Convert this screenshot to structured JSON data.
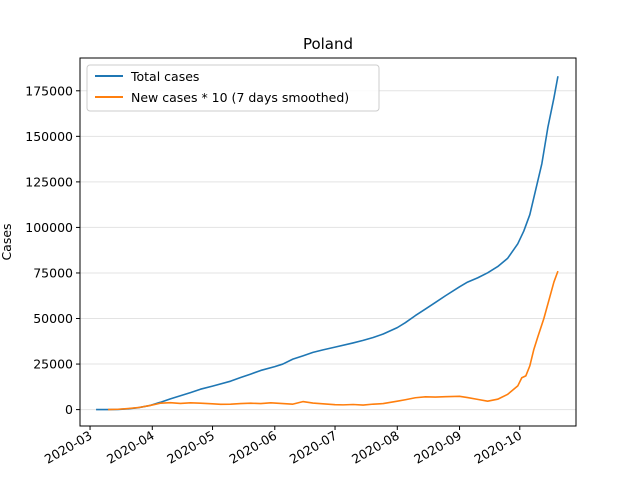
{
  "chart_data": {
    "type": "line",
    "title": "Poland",
    "xlabel": "",
    "ylabel": "Cases",
    "x_ticks": [
      "2020-03",
      "2020-04",
      "2020-05",
      "2020-06",
      "2020-07",
      "2020-08",
      "2020-09",
      "2020-10"
    ],
    "y_ticks": [
      "0",
      "25000",
      "50000",
      "75000",
      "100000",
      "125000",
      "150000",
      "175000"
    ],
    "xlim": [
      "2020-02-25",
      "2020-10-29"
    ],
    "ylim": [
      -9000,
      193000
    ],
    "grid": "y",
    "legend_position": "top-left",
    "series": [
      {
        "name": "Total cases",
        "color": "#1f77b4",
        "points": [
          [
            "2020-03-04",
            0
          ],
          [
            "2020-03-10",
            20
          ],
          [
            "2020-03-15",
            120
          ],
          [
            "2020-03-20",
            450
          ],
          [
            "2020-03-25",
            1050
          ],
          [
            "2020-03-31",
            2300
          ],
          [
            "2020-04-05",
            4000
          ],
          [
            "2020-04-10",
            5900
          ],
          [
            "2020-04-15",
            7600
          ],
          [
            "2020-04-20",
            9300
          ],
          [
            "2020-04-25",
            11200
          ],
          [
            "2020-05-01",
            12900
          ],
          [
            "2020-05-10",
            15600
          ],
          [
            "2020-05-15",
            17600
          ],
          [
            "2020-05-20",
            19500
          ],
          [
            "2020-05-25",
            21500
          ],
          [
            "2020-06-01",
            23600
          ],
          [
            "2020-06-05",
            25000
          ],
          [
            "2020-06-10",
            27700
          ],
          [
            "2020-06-15",
            29500
          ],
          [
            "2020-06-20",
            31400
          ],
          [
            "2020-06-25",
            32800
          ],
          [
            "2020-07-01",
            34300
          ],
          [
            "2020-07-10",
            36600
          ],
          [
            "2020-07-15",
            38000
          ],
          [
            "2020-07-20",
            39600
          ],
          [
            "2020-07-25",
            41500
          ],
          [
            "2020-08-01",
            45000
          ],
          [
            "2020-08-05",
            47700
          ],
          [
            "2020-08-10",
            51600
          ],
          [
            "2020-08-15",
            55200
          ],
          [
            "2020-08-20",
            58800
          ],
          [
            "2020-08-25",
            62500
          ],
          [
            "2020-09-01",
            67400
          ],
          [
            "2020-09-05",
            70000
          ],
          [
            "2020-09-10",
            72300
          ],
          [
            "2020-09-15",
            75100
          ],
          [
            "2020-09-20",
            78500
          ],
          [
            "2020-09-25",
            83100
          ],
          [
            "2020-09-30",
            91000
          ],
          [
            "2020-10-03",
            98000
          ],
          [
            "2020-10-06",
            107000
          ],
          [
            "2020-10-09",
            121000
          ],
          [
            "2020-10-12",
            135000
          ],
          [
            "2020-10-15",
            155000
          ],
          [
            "2020-10-18",
            171000
          ],
          [
            "2020-10-20",
            183000
          ]
        ]
      },
      {
        "name": "New cases * 10 (7 days smoothed)",
        "color": "#ff7f0e",
        "points": [
          [
            "2020-03-10",
            0
          ],
          [
            "2020-03-15",
            200
          ],
          [
            "2020-03-20",
            600
          ],
          [
            "2020-03-25",
            1100
          ],
          [
            "2020-03-31",
            2300
          ],
          [
            "2020-04-05",
            3500
          ],
          [
            "2020-04-10",
            3800
          ],
          [
            "2020-04-15",
            3400
          ],
          [
            "2020-04-20",
            3700
          ],
          [
            "2020-04-25",
            3500
          ],
          [
            "2020-05-01",
            3200
          ],
          [
            "2020-05-05",
            2900
          ],
          [
            "2020-05-10",
            3000
          ],
          [
            "2020-05-15",
            3300
          ],
          [
            "2020-05-20",
            3500
          ],
          [
            "2020-05-25",
            3300
          ],
          [
            "2020-05-30",
            3700
          ],
          [
            "2020-06-05",
            3300
          ],
          [
            "2020-06-10",
            3000
          ],
          [
            "2020-06-15",
            4400
          ],
          [
            "2020-06-20",
            3600
          ],
          [
            "2020-06-25",
            3200
          ],
          [
            "2020-07-01",
            2700
          ],
          [
            "2020-07-05",
            2600
          ],
          [
            "2020-07-10",
            2800
          ],
          [
            "2020-07-15",
            2500
          ],
          [
            "2020-07-20",
            3000
          ],
          [
            "2020-07-25",
            3300
          ],
          [
            "2020-08-01",
            4600
          ],
          [
            "2020-08-05",
            5400
          ],
          [
            "2020-08-10",
            6500
          ],
          [
            "2020-08-15",
            7000
          ],
          [
            "2020-08-20",
            6900
          ],
          [
            "2020-08-25",
            7100
          ],
          [
            "2020-09-01",
            7300
          ],
          [
            "2020-09-05",
            6600
          ],
          [
            "2020-09-10",
            5600
          ],
          [
            "2020-09-15",
            4600
          ],
          [
            "2020-09-20",
            5700
          ],
          [
            "2020-09-25",
            8400
          ],
          [
            "2020-09-30",
            13000
          ],
          [
            "2020-10-02",
            17500
          ],
          [
            "2020-10-04",
            18500
          ],
          [
            "2020-10-06",
            24000
          ],
          [
            "2020-10-08",
            33000
          ],
          [
            "2020-10-10",
            40000
          ],
          [
            "2020-10-13",
            50000
          ],
          [
            "2020-10-16",
            62000
          ],
          [
            "2020-10-18",
            70000
          ],
          [
            "2020-10-20",
            76000
          ]
        ]
      }
    ]
  }
}
